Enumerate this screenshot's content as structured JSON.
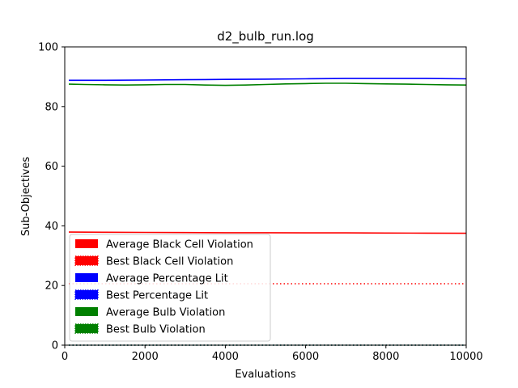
{
  "chart_data": {
    "type": "line",
    "title": "d2_bulb_run.log",
    "xlabel": "Evaluations",
    "ylabel": "Sub-Objectives",
    "xlim": [
      0,
      10000
    ],
    "ylim": [
      0,
      100
    ],
    "xticks": [
      0,
      2000,
      4000,
      6000,
      8000,
      10000
    ],
    "yticks": [
      0,
      20,
      40,
      60,
      80,
      100
    ],
    "grid": false,
    "legend_position": "lower-left",
    "series": [
      {
        "name": "Average Black Cell Violation",
        "color": "#ff0000",
        "style": "solid",
        "x": [
          100,
          1000,
          2000,
          3000,
          4000,
          5000,
          6000,
          7000,
          8000,
          9000,
          10000
        ],
        "y": [
          37.9,
          37.85,
          37.8,
          37.75,
          37.7,
          37.7,
          37.65,
          37.65,
          37.6,
          37.55,
          37.5
        ]
      },
      {
        "name": "Best Black Cell Violation",
        "color": "#ff0000",
        "style": "dotted",
        "x": [
          100,
          10000
        ],
        "y": [
          20.6,
          20.6
        ]
      },
      {
        "name": "Average Percentage Lit",
        "color": "#0000ff",
        "style": "solid",
        "x": [
          100,
          1000,
          2000,
          3000,
          4000,
          5000,
          6000,
          7000,
          8000,
          9000,
          10000
        ],
        "y": [
          88.8,
          88.8,
          88.9,
          89.0,
          89.1,
          89.2,
          89.3,
          89.4,
          89.4,
          89.4,
          89.3
        ]
      },
      {
        "name": "Best Percentage Lit",
        "color": "#0000ff",
        "style": "dotted",
        "x": [
          100,
          10000
        ],
        "y": [
          0,
          0
        ]
      },
      {
        "name": "Average Bulb Violation",
        "color": "#008000",
        "style": "solid",
        "x": [
          100,
          500,
          1000,
          1500,
          2000,
          2500,
          3000,
          3500,
          4000,
          4500,
          5000,
          5500,
          6000,
          6500,
          7000,
          7500,
          8000,
          8500,
          9000,
          9500,
          10000
        ],
        "y": [
          87.5,
          87.4,
          87.3,
          87.2,
          87.3,
          87.4,
          87.4,
          87.2,
          87.1,
          87.2,
          87.4,
          87.6,
          87.7,
          87.8,
          87.8,
          87.7,
          87.6,
          87.5,
          87.4,
          87.3,
          87.2
        ]
      },
      {
        "name": "Best Bulb Violation",
        "color": "#008000",
        "style": "dotted",
        "x": [
          100,
          10000
        ],
        "y": [
          0,
          0
        ]
      }
    ]
  }
}
